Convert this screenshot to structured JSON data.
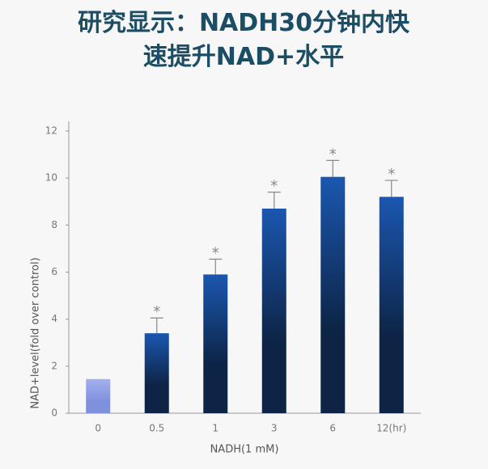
{
  "chart_data": {
    "type": "bar",
    "title": [
      "研究显示：NADH30分钟内快",
      "速提升NAD+水平"
    ],
    "x_label": "NADH(1 mM)",
    "y_label": "NAD+level(fold over control)",
    "categories": [
      "0",
      "0.5",
      "1",
      "3",
      "6",
      "12(hr)"
    ],
    "values": [
      1.45,
      3.4,
      5.9,
      8.7,
      10.05,
      9.2
    ],
    "errors": [
      null,
      0.65,
      0.65,
      0.7,
      0.7,
      0.7
    ],
    "significance_labels": [
      null,
      "*",
      "*",
      "*",
      "*",
      "*"
    ],
    "colors": [
      [
        "#a3b0ee",
        "#7f90dd"
      ],
      [
        "#1b57b0",
        "#0d2446"
      ],
      [
        "#1b57b0",
        "#0d2446"
      ],
      [
        "#1b57b0",
        "#0d2446"
      ],
      [
        "#1b57b0",
        "#0d2446"
      ],
      [
        "#1b57b0",
        "#0d2446"
      ]
    ],
    "ylim": [
      0,
      12
    ],
    "yticks": [
      0,
      2,
      4,
      6,
      8,
      10,
      12
    ],
    "grid": false
  }
}
